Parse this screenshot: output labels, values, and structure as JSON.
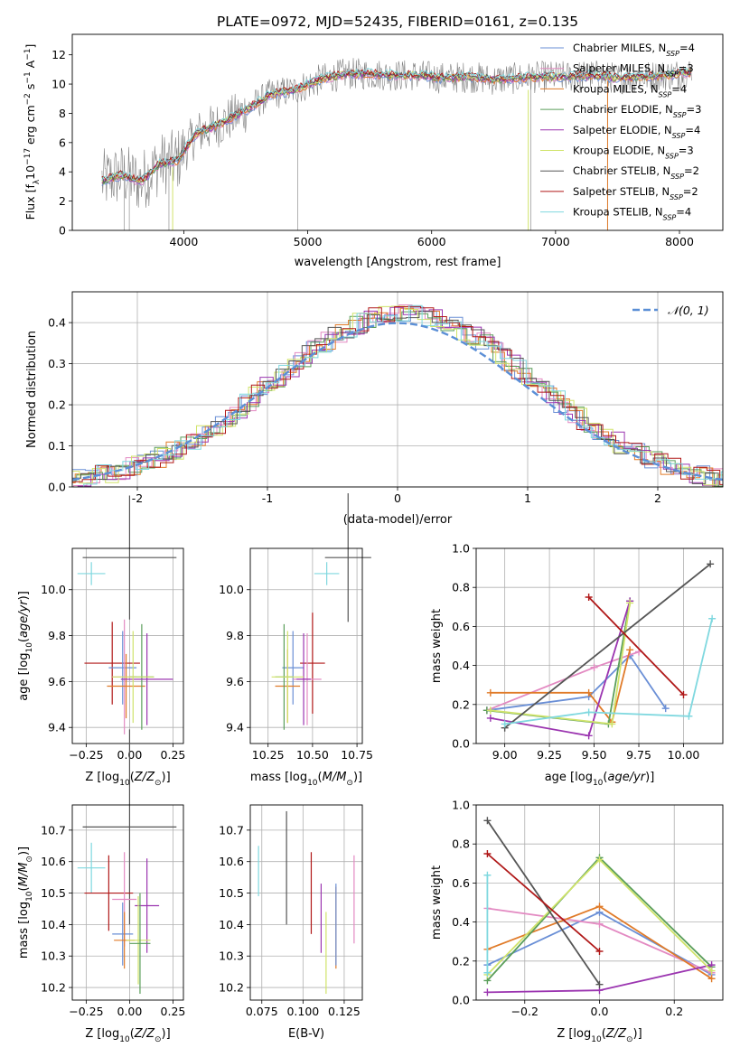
{
  "colors": {
    "Chabrier MILES": "#6a8fd6",
    "Salpeter MILES": "#e38ac2",
    "Kroupa MILES": "#e07b29",
    "Chabrier ELODIE": "#5a9e5a",
    "Salpeter ELODIE": "#9b35b0",
    "Kroupa ELODIE": "#d0e36a",
    "Chabrier STELIB": "#555555",
    "Salpeter STELIB": "#b01818",
    "Kroupa STELIB": "#7fd8df",
    "data": "#808080",
    "gauss": "#5b8fd6"
  },
  "chart_data": [
    {
      "id": "spectrum",
      "type": "line",
      "title": "PLATE=0972, MJD=52435, FIBERID=0161, z=0.135",
      "xlabel": "wavelength [Angstrom, rest frame]",
      "ylabel": "Flux [f_λ10^-17 erg cm^-2 s^-1 A^-1]",
      "xlim": [
        3100,
        8350
      ],
      "ylim": [
        0,
        13.4
      ],
      "xticks": [
        4000,
        5000,
        6000,
        7000,
        8000
      ],
      "yticks": [
        0,
        2,
        4,
        6,
        8,
        10,
        12
      ],
      "grid": false,
      "legend_position": "right",
      "legend": [
        {
          "label": "Chabrier MILES, N",
          "sub": "SSP",
          "tail": "=4"
        },
        {
          "label": "Salpeter MILES, N",
          "sub": "SSP",
          "tail": "=3"
        },
        {
          "label": "Kroupa MILES, N",
          "sub": "SSP",
          "tail": "=4"
        },
        {
          "label": "Chabrier ELODIE, N",
          "sub": "SSP",
          "tail": "=3"
        },
        {
          "label": "Salpeter ELODIE, N",
          "sub": "SSP",
          "tail": "=4"
        },
        {
          "label": "Kroupa ELODIE, N",
          "sub": "SSP",
          "tail": "=3"
        },
        {
          "label": "Chabrier STELIB, N",
          "sub": "SSP",
          "tail": "=2"
        },
        {
          "label": "Salpeter STELIB, N",
          "sub": "SSP",
          "tail": "=2"
        },
        {
          "label": "Kroupa STELIB, N",
          "sub": "SSP",
          "tail": "=4"
        }
      ],
      "continuum": {
        "x": [
          3350,
          3500,
          3650,
          3800,
          3950,
          4100,
          4300,
          4500,
          4700,
          4900,
          5100,
          5300,
          5500,
          5700,
          5900,
          6100,
          6300,
          6500,
          6700,
          6900,
          7100,
          7300,
          7500,
          7700,
          7900,
          8100
        ],
        "y": [
          3.4,
          3.8,
          3.3,
          4.5,
          4.8,
          6.6,
          7.3,
          8.2,
          9.3,
          9.6,
          10.3,
          10.7,
          10.7,
          10.6,
          10.6,
          10.4,
          10.5,
          10.3,
          10.4,
          10.5,
          10.5,
          10.6,
          10.4,
          10.5,
          10.6,
          10.8
        ]
      }
    },
    {
      "id": "residuals",
      "type": "line",
      "xlabel": "(data-model)/error",
      "ylabel": "Normed distribution",
      "xlim": [
        -2.5,
        2.5
      ],
      "ylim": [
        0,
        0.475
      ],
      "xticks": [
        -2,
        -1,
        0,
        1,
        2
      ],
      "yticks": [
        0.0,
        0.1,
        0.2,
        0.3,
        0.4
      ],
      "grid": true,
      "legend": "𝒩(0, 1)",
      "legend_position": "top-right"
    },
    {
      "id": "age-vs-Z",
      "type": "scatter",
      "xlabel": "Z [log10(Z/Z⊙)]",
      "ylabel": "age [log10(age/yr)]",
      "xlim": [
        -0.33,
        0.31
      ],
      "ylim": [
        9.33,
        10.18
      ],
      "xticks": [
        -0.25,
        0.0,
        0.25
      ],
      "xticklabels": [
        "−0.25",
        "0.00",
        "0.25"
      ],
      "yticks": [
        9.4,
        9.6,
        9.8,
        10.0
      ],
      "grid": true,
      "points": [
        {
          "model": "Chabrier STELIB",
          "x": 0.0,
          "y": 10.14,
          "xerr": 0.27,
          "yerr": 0.27
        },
        {
          "model": "Kroupa STELIB",
          "x": -0.22,
          "y": 10.07,
          "xerr": 0.08,
          "yerr": 0.05
        },
        {
          "model": "Salpeter STELIB",
          "x": -0.1,
          "y": 9.68,
          "xerr": 0.16,
          "yerr": 0.18
        },
        {
          "model": "Chabrier MILES",
          "x": -0.04,
          "y": 9.66,
          "xerr": 0.08,
          "yerr": 0.16
        },
        {
          "model": "Salpeter MILES",
          "x": -0.03,
          "y": 9.62,
          "xerr": 0.07,
          "yerr": 0.25
        },
        {
          "model": "Kroupa MILES",
          "x": -0.02,
          "y": 9.58,
          "xerr": 0.11,
          "yerr": 0.14
        },
        {
          "model": "Chabrier ELODIE",
          "x": 0.07,
          "y": 9.62,
          "xerr": 0.07,
          "yerr": 0.23
        },
        {
          "model": "Salpeter ELODIE",
          "x": 0.1,
          "y": 9.61,
          "xerr": 0.15,
          "yerr": 0.2
        },
        {
          "model": "Kroupa ELODIE",
          "x": 0.02,
          "y": 9.62,
          "xerr": 0.12,
          "yerr": 0.2
        }
      ]
    },
    {
      "id": "age-vs-mass",
      "type": "scatter",
      "xlabel": "mass [log10(M/M⊙)]",
      "xlim": [
        10.15,
        10.78
      ],
      "ylim": [
        9.33,
        10.18
      ],
      "xticks": [
        10.25,
        10.5,
        10.75
      ],
      "xticklabels": [
        "10.25",
        "10.50",
        "10.75"
      ],
      "yticks": [
        9.4,
        9.6,
        9.8,
        10.0
      ],
      "grid": true,
      "points": [
        {
          "model": "Chabrier STELIB",
          "x": 10.7,
          "y": 10.14,
          "xerr": 0.13,
          "yerr": 0.28
        },
        {
          "model": "Kroupa STELIB",
          "x": 10.58,
          "y": 10.07,
          "xerr": 0.07,
          "yerr": 0.05
        },
        {
          "model": "Salpeter STELIB",
          "x": 10.5,
          "y": 9.68,
          "xerr": 0.07,
          "yerr": 0.22
        },
        {
          "model": "Chabrier MILES",
          "x": 10.39,
          "y": 9.66,
          "xerr": 0.06,
          "yerr": 0.16
        },
        {
          "model": "Salpeter MILES",
          "x": 10.47,
          "y": 9.61,
          "xerr": 0.08,
          "yerr": 0.2
        },
        {
          "model": "Kroupa MILES",
          "x": 10.36,
          "y": 9.58,
          "xerr": 0.07,
          "yerr": 0.16
        },
        {
          "model": "Chabrier ELODIE",
          "x": 10.34,
          "y": 9.62,
          "xerr": 0.05,
          "yerr": 0.23
        },
        {
          "model": "Salpeter ELODIE",
          "x": 10.45,
          "y": 9.61,
          "xerr": 0.04,
          "yerr": 0.2
        },
        {
          "model": "Kroupa ELODIE",
          "x": 10.36,
          "y": 9.62,
          "xerr": 0.09,
          "yerr": 0.2
        }
      ]
    },
    {
      "id": "weight-vs-age",
      "type": "line",
      "xlabel": "age [log10(age/yr)]",
      "ylabel": "mass weight",
      "xlim": [
        8.84,
        10.22
      ],
      "ylim": [
        0.0,
        1.0
      ],
      "xticks": [
        9.0,
        9.25,
        9.5,
        9.75,
        10.0
      ],
      "xticklabels": [
        "9.00",
        "9.25",
        "9.50",
        "9.75",
        "10.00"
      ],
      "yticks": [
        0.0,
        0.2,
        0.4,
        0.6,
        0.8,
        1.0
      ],
      "grid": true,
      "series": [
        {
          "model": "Chabrier MILES",
          "x": [
            8.9,
            9.47,
            9.7,
            9.9
          ],
          "y": [
            0.17,
            0.24,
            0.45,
            0.18
          ]
        },
        {
          "model": "Salpeter MILES",
          "x": [
            8.9,
            9.5,
            9.75
          ],
          "y": [
            0.17,
            0.39,
            0.47
          ]
        },
        {
          "model": "Kroupa MILES",
          "x": [
            8.92,
            9.47,
            9.6,
            9.7
          ],
          "y": [
            0.26,
            0.26,
            0.11,
            0.48
          ]
        },
        {
          "model": "Chabrier ELODIE",
          "x": [
            8.9,
            9.58,
            9.7
          ],
          "y": [
            0.17,
            0.1,
            0.73
          ]
        },
        {
          "model": "Salpeter ELODIE",
          "x": [
            8.92,
            9.47,
            9.7
          ],
          "y": [
            0.13,
            0.04,
            0.73
          ]
        },
        {
          "model": "Kroupa ELODIE",
          "x": [
            8.92,
            9.6,
            9.7
          ],
          "y": [
            0.17,
            0.1,
            0.72
          ]
        },
        {
          "model": "Chabrier STELIB",
          "x": [
            9.0,
            10.15
          ],
          "y": [
            0.08,
            0.92
          ]
        },
        {
          "model": "Salpeter STELIB",
          "x": [
            9.47,
            10.0
          ],
          "y": [
            0.75,
            0.25
          ]
        },
        {
          "model": "Kroupa STELIB",
          "x": [
            9.0,
            9.47,
            10.03,
            10.16
          ],
          "y": [
            0.1,
            0.16,
            0.14,
            0.64
          ]
        }
      ]
    },
    {
      "id": "mass-vs-Z",
      "type": "scatter",
      "xlabel": "Z [log10(Z/Z⊙)]",
      "ylabel": "mass [log10(M/M⊙)]",
      "xlim": [
        -0.33,
        0.31
      ],
      "ylim": [
        10.16,
        10.78
      ],
      "xticks": [
        -0.25,
        0.0,
        0.25
      ],
      "xticklabels": [
        "−0.25",
        "0.00",
        "0.25"
      ],
      "yticks": [
        10.2,
        10.3,
        10.4,
        10.5,
        10.6,
        10.7
      ],
      "grid": true,
      "points": [
        {
          "model": "Chabrier STELIB",
          "x": 0.0,
          "y": 10.71,
          "xerr": 0.27,
          "yerr": 0.31
        },
        {
          "model": "Kroupa STELIB",
          "x": -0.22,
          "y": 10.58,
          "xerr": 0.08,
          "yerr": 0.08
        },
        {
          "model": "Salpeter STELIB",
          "x": -0.12,
          "y": 10.5,
          "xerr": 0.14,
          "yerr": 0.12
        },
        {
          "model": "Salpeter MILES",
          "x": -0.03,
          "y": 10.48,
          "xerr": 0.07,
          "yerr": 0.15
        },
        {
          "model": "Salpeter ELODIE",
          "x": 0.1,
          "y": 10.46,
          "xerr": 0.07,
          "yerr": 0.15
        },
        {
          "model": "Chabrier MILES",
          "x": -0.04,
          "y": 10.37,
          "xerr": 0.06,
          "yerr": 0.1
        },
        {
          "model": "Kroupa MILES",
          "x": -0.03,
          "y": 10.35,
          "xerr": 0.06,
          "yerr": 0.09
        },
        {
          "model": "Kroupa ELODIE",
          "x": 0.05,
          "y": 10.35,
          "xerr": 0.07,
          "yerr": 0.14
        },
        {
          "model": "Chabrier ELODIE",
          "x": 0.06,
          "y": 10.34,
          "xerr": 0.06,
          "yerr": 0.16
        }
      ]
    },
    {
      "id": "mass-vs-EBV",
      "type": "scatter",
      "xlabel": "E(B-V)",
      "xlim": [
        0.068,
        0.136
      ],
      "ylim": [
        10.16,
        10.78
      ],
      "xticks": [
        0.075,
        0.1,
        0.125
      ],
      "xticklabels": [
        "0.075",
        "0.100",
        "0.125"
      ],
      "yticks": [
        10.2,
        10.3,
        10.4,
        10.5,
        10.6,
        10.7
      ],
      "grid": true,
      "points": [
        {
          "model": "Kroupa STELIB",
          "x": 0.073,
          "y": 10.57,
          "yerr": 0.08
        },
        {
          "model": "Chabrier STELIB",
          "x": 0.09,
          "y": 10.58,
          "yerr": 0.18
        },
        {
          "model": "Salpeter STELIB",
          "x": 0.105,
          "y": 10.5,
          "yerr": 0.13
        },
        {
          "model": "Salpeter ELODIE",
          "x": 0.111,
          "y": 10.42,
          "yerr": 0.11
        },
        {
          "model": "Kroupa ELODIE",
          "x": 0.114,
          "y": 10.31,
          "yerr": 0.13
        },
        {
          "model": "Kroupa MILES",
          "x": 0.12,
          "y": 10.39,
          "yerr": 0.13
        },
        {
          "model": "Chabrier MILES",
          "x": 0.12,
          "y": 10.4,
          "yerr": 0.13
        },
        {
          "model": "Salpeter MILES",
          "x": 0.131,
          "y": 10.48,
          "yerr": 0.14
        }
      ]
    },
    {
      "id": "weight-vs-Z",
      "type": "line",
      "xlabel": "Z [log10(Z/Z⊙)]",
      "ylabel": "mass weight",
      "xlim": [
        -0.33,
        0.33
      ],
      "ylim": [
        0.0,
        1.0
      ],
      "xticks": [
        -0.2,
        0.0,
        0.2
      ],
      "xticklabels": [
        "−0.2",
        "0.0",
        "0.2"
      ],
      "yticks": [
        0.0,
        0.2,
        0.4,
        0.6,
        0.8,
        1.0
      ],
      "grid": true,
      "series": [
        {
          "model": "Chabrier MILES",
          "x": [
            -0.3,
            0.0,
            0.3
          ],
          "y": [
            0.18,
            0.45,
            0.13
          ]
        },
        {
          "model": "Salpeter MILES",
          "x": [
            -0.3,
            0.0,
            0.3
          ],
          "y": [
            0.47,
            0.39,
            0.14
          ]
        },
        {
          "model": "Kroupa MILES",
          "x": [
            -0.3,
            0.0,
            0.3
          ],
          "y": [
            0.26,
            0.48,
            0.11
          ]
        },
        {
          "model": "Chabrier ELODIE",
          "x": [
            -0.3,
            0.0,
            0.3
          ],
          "y": [
            0.1,
            0.73,
            0.17
          ]
        },
        {
          "model": "Salpeter ELODIE",
          "x": [
            -0.3,
            0.0,
            0.3
          ],
          "y": [
            0.04,
            0.05,
            0.18
          ]
        },
        {
          "model": "Kroupa ELODIE",
          "x": [
            -0.3,
            0.0,
            0.3
          ],
          "y": [
            0.13,
            0.72,
            0.15
          ]
        },
        {
          "model": "Chabrier STELIB",
          "x": [
            -0.3,
            0.0
          ],
          "y": [
            0.92,
            0.08
          ]
        },
        {
          "model": "Salpeter STELIB",
          "x": [
            -0.3,
            0.0
          ],
          "y": [
            0.75,
            0.25
          ]
        },
        {
          "model": "Kroupa STELIB",
          "x": [
            -0.3,
            -0.3
          ],
          "y": [
            0.64,
            0.14
          ]
        }
      ]
    }
  ]
}
